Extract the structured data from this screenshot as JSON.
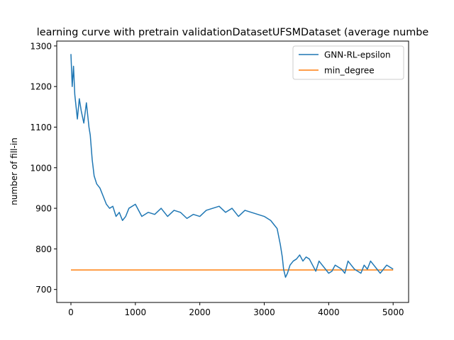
{
  "chart_data": {
    "type": "line",
    "title": "learning curve with pretrain validationDatasetUFSMDataset (average numbe",
    "xlabel": "",
    "ylabel": "number of fill-in",
    "xlim": [
      -220,
      5240
    ],
    "ylim": [
      668,
      1312
    ],
    "xticks": [
      0,
      1000,
      2000,
      3000,
      4000,
      5000
    ],
    "yticks": [
      700,
      800,
      900,
      1000,
      1100,
      1200,
      1300
    ],
    "legend_position": "top-right",
    "grid": false,
    "series": [
      {
        "name": "GNN-RL-epsilon",
        "color": "#1f77b4",
        "x": [
          0,
          20,
          40,
          60,
          80,
          100,
          130,
          160,
          200,
          240,
          280,
          300,
          330,
          360,
          400,
          450,
          500,
          550,
          600,
          650,
          700,
          750,
          800,
          850,
          900,
          1000,
          1100,
          1200,
          1300,
          1400,
          1500,
          1600,
          1700,
          1800,
          1900,
          2000,
          2100,
          2200,
          2300,
          2400,
          2500,
          2600,
          2700,
          2800,
          2900,
          3000,
          3100,
          3150,
          3200,
          3250,
          3280,
          3300,
          3330,
          3360,
          3400,
          3450,
          3500,
          3550,
          3600,
          3650,
          3700,
          3750,
          3800,
          3850,
          3900,
          3950,
          4000,
          4050,
          4100,
          4150,
          4200,
          4250,
          4300,
          4350,
          4400,
          4450,
          4500,
          4550,
          4600,
          4650,
          4700,
          4750,
          4800,
          4850,
          4900,
          4950,
          5000
        ],
        "y": [
          1280,
          1200,
          1250,
          1180,
          1150,
          1120,
          1170,
          1140,
          1110,
          1160,
          1100,
          1080,
          1020,
          980,
          960,
          950,
          930,
          910,
          900,
          905,
          880,
          890,
          870,
          880,
          900,
          910,
          880,
          890,
          885,
          900,
          880,
          895,
          890,
          875,
          885,
          880,
          895,
          900,
          905,
          890,
          900,
          880,
          895,
          890,
          885,
          880,
          870,
          860,
          850,
          810,
          780,
          750,
          730,
          740,
          760,
          770,
          775,
          785,
          770,
          780,
          775,
          760,
          745,
          770,
          760,
          750,
          740,
          745,
          760,
          755,
          750,
          740,
          770,
          760,
          750,
          745,
          740,
          760,
          750,
          770,
          760,
          750,
          740,
          750,
          760,
          755,
          750
        ]
      },
      {
        "name": "min_degree",
        "color": "#ff7f0e",
        "x": [
          0,
          5000
        ],
        "y": [
          748,
          748
        ]
      }
    ]
  }
}
